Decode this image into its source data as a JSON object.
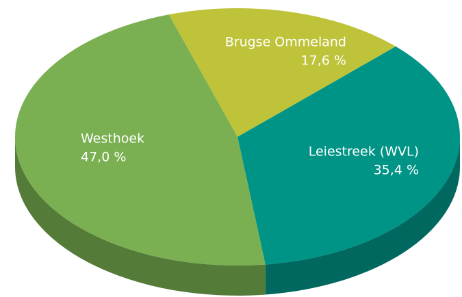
{
  "chart_data": {
    "type": "pie",
    "categories": [
      "Brugse Ommeland",
      "Leiestreek (WVL)",
      "Westhoek"
    ],
    "values": [
      17.6,
      35.4,
      47.0
    ],
    "value_labels": [
      "17,6 %",
      "35,4 %",
      "47,0 %"
    ],
    "colors": [
      "#bec33a",
      "#009486",
      "#7ab051"
    ]
  }
}
